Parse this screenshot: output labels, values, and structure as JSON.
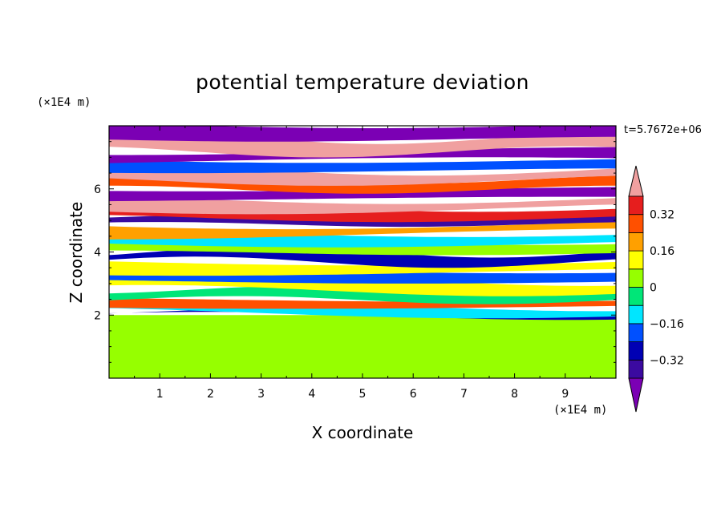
{
  "chart_data": {
    "type": "heatmap",
    "title": "potential temperature deviation",
    "xlabel": "X coordinate",
    "ylabel": "Z coordinate",
    "x_unit_label": "(×1E4 m)",
    "y_unit_label": "(×1E4 m)",
    "time_label": "t=5.7672e+06",
    "xlim": [
      0,
      10
    ],
    "ylim": [
      0,
      8
    ],
    "x_ticks": [
      1,
      2,
      3,
      4,
      5,
      6,
      7,
      8,
      9
    ],
    "y_ticks": [
      2,
      4,
      6
    ],
    "colorbar": {
      "levels": [
        -0.4,
        -0.32,
        -0.24,
        -0.16,
        -0.08,
        0,
        0.08,
        0.16,
        0.24,
        0.32,
        0.4
      ],
      "tick_values": [
        0.32,
        0.16,
        0,
        -0.16,
        -0.32
      ],
      "tick_labels": [
        "0.32",
        "0.16",
        "0",
        "−0.16",
        "−0.32"
      ],
      "colors": [
        "#7b00b4",
        "#3b0aa0",
        "#0000b4",
        "#0050ff",
        "#00e6ff",
        "#00e678",
        "#96ff00",
        "#ffff00",
        "#ffa000",
        "#ff5000",
        "#e61e1e",
        "#f0a0a0"
      ],
      "extend": "both"
    },
    "bands": [
      {
        "z0": 0.0,
        "z1": 2.0,
        "value": 0.02
      },
      {
        "z0": 2.0,
        "z1": 2.1,
        "value": -0.3
      },
      {
        "z0": 2.1,
        "z1": 2.3,
        "value": -0.12
      },
      {
        "z0": 2.3,
        "z1": 2.5,
        "value": 0.3
      },
      {
        "z0": 2.5,
        "z1": 2.8,
        "value": -0.05
      },
      {
        "z0": 2.8,
        "z1": 3.1,
        "value": 0.1
      },
      {
        "z0": 3.1,
        "z1": 3.4,
        "value": -0.2
      },
      {
        "z0": 3.4,
        "z1": 3.7,
        "value": 0.14
      },
      {
        "z0": 3.7,
        "z1": 4.0,
        "value": -0.28
      },
      {
        "z0": 4.0,
        "z1": 4.3,
        "value": 0.06
      },
      {
        "z0": 4.3,
        "z1": 4.6,
        "value": -0.1
      },
      {
        "z0": 4.6,
        "z1": 4.9,
        "value": 0.2
      },
      {
        "z0": 4.9,
        "z1": 5.1,
        "value": -0.34
      },
      {
        "z0": 5.1,
        "z1": 5.4,
        "value": 0.34
      },
      {
        "z0": 5.4,
        "z1": 5.7,
        "value": 0.42
      },
      {
        "z0": 5.7,
        "z1": 6.0,
        "value": -0.44
      },
      {
        "z0": 6.0,
        "z1": 6.3,
        "value": 0.3
      },
      {
        "z0": 6.3,
        "z1": 6.6,
        "value": 0.44
      },
      {
        "z0": 6.6,
        "z1": 6.9,
        "value": -0.2
      },
      {
        "z0": 6.9,
        "z1": 7.2,
        "value": -0.44
      },
      {
        "z0": 7.2,
        "z1": 7.6,
        "value": 0.44
      },
      {
        "z0": 7.6,
        "z1": 8.0,
        "value": -0.44
      }
    ]
  }
}
